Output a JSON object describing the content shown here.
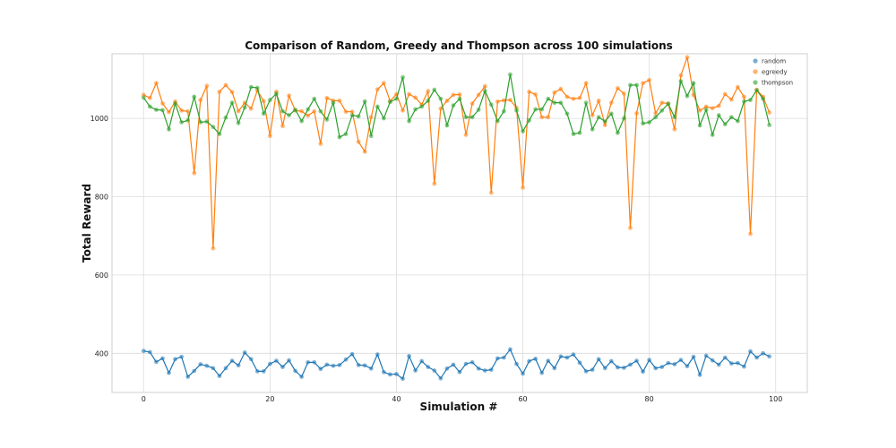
{
  "chart_data": {
    "type": "line",
    "title": "Comparison of Random, Greedy and Thompson across 100 simulations",
    "xlabel": "Simulation #",
    "ylabel": "Total Reward",
    "xlim": [
      -5,
      105
    ],
    "ylim": [
      300,
      1165
    ],
    "xticks": [
      0,
      20,
      40,
      60,
      80,
      100
    ],
    "yticks": [
      400,
      600,
      800,
      1000
    ],
    "grid": true,
    "legend_position": "top-right",
    "series": [
      {
        "name": "random",
        "color": "#1f77b4",
        "values": [
          406,
          403,
          378,
          387,
          350,
          385,
          391,
          340,
          355,
          372,
          368,
          362,
          342,
          362,
          381,
          369,
          402,
          385,
          354,
          354,
          373,
          381,
          365,
          382,
          355,
          340,
          377,
          377,
          360,
          371,
          368,
          370,
          384,
          398,
          370,
          369,
          361,
          397,
          352,
          346,
          347,
          335,
          393,
          356,
          380,
          365,
          356,
          336,
          361,
          371,
          352,
          373,
          377,
          361,
          356,
          358,
          387,
          389,
          410,
          373,
          348,
          380,
          386,
          350,
          381,
          362,
          392,
          389,
          397,
          376,
          354,
          358,
          385,
          362,
          380,
          364,
          363,
          371,
          381,
          353,
          383,
          362,
          365,
          375,
          372,
          383,
          367,
          391,
          345,
          394,
          382,
          371,
          389,
          374,
          375,
          366,
          405,
          389,
          400,
          392
        ]
      },
      {
        "name": "egreedy",
        "color": "#ff7f0e",
        "values": [
          1060,
          1052,
          1090,
          1038,
          1016,
          1043,
          1020,
          1018,
          860,
          1047,
          1083,
          668,
          1068,
          1085,
          1067,
          1018,
          1040,
          1025,
          1071,
          1044,
          955,
          1068,
          980,
          1058,
          1020,
          1018,
          1007,
          1018,
          935,
          1052,
          1045,
          1045,
          1017,
          1017,
          940,
          915,
          1003,
          1074,
          1090,
          1044,
          1062,
          1020,
          1062,
          1053,
          1035,
          1070,
          833,
          1025,
          1045,
          1060,
          1061,
          958,
          1038,
          1060,
          1082,
          810,
          1043,
          1046,
          1047,
          1027,
          823,
          1068,
          1061,
          1003,
          1003,
          1066,
          1075,
          1055,
          1050,
          1052,
          1090,
          1008,
          1045,
          983,
          1040,
          1077,
          1063,
          720,
          1013,
          1090,
          1098,
          1013,
          1040,
          1038,
          972,
          1110,
          1156,
          1060,
          1020,
          1030,
          1026,
          1032,
          1062,
          1048,
          1080,
          1055,
          705,
          1073,
          1055,
          1015
        ]
      },
      {
        "name": "thompson",
        "color": "#2ca02c",
        "values": [
          1053,
          1030,
          1022,
          1021,
          972,
          1038,
          990,
          995,
          1055,
          990,
          992,
          978,
          960,
          1002,
          1040,
          988,
          1028,
          1080,
          1078,
          1012,
          1047,
          1063,
          1018,
          1008,
          1022,
          993,
          1023,
          1050,
          1018,
          997,
          1040,
          952,
          960,
          1008,
          1005,
          1043,
          955,
          1030,
          1000,
          1042,
          1050,
          1105,
          993,
          1023,
          1030,
          1045,
          1073,
          1050,
          982,
          1033,
          1050,
          1003,
          1003,
          1022,
          1070,
          1035,
          993,
          1018,
          1112,
          1020,
          967,
          995,
          1023,
          1023,
          1050,
          1040,
          1040,
          1012,
          960,
          963,
          1040,
          972,
          1003,
          992,
          1012,
          963,
          1000,
          1085,
          1085,
          987,
          990,
          1003,
          1020,
          1037,
          1003,
          1095,
          1057,
          1090,
          982,
          1022,
          958,
          1008,
          985,
          1003,
          993,
          1043,
          1047,
          1072,
          1050,
          983
        ]
      }
    ]
  }
}
